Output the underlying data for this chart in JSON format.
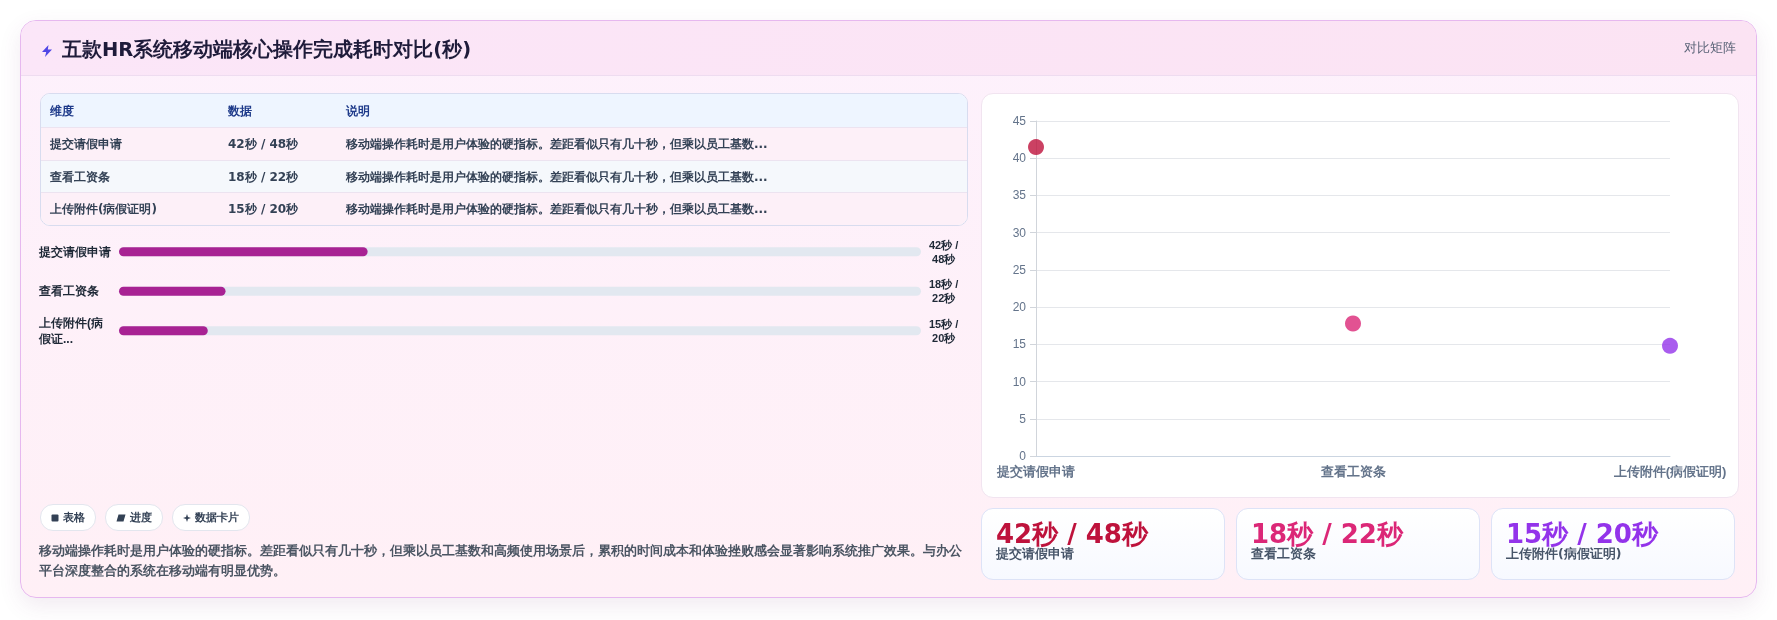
{
  "chart_data": [
    {
      "type": "other",
      "title": "五款HR系统移动端核心操作完成耗时对比(秒)",
      "annotations": [
        "对比矩阵",
        "维度",
        "数据",
        "说明",
        "移动端操作耗时是用户体验的硬指标。差距看似只有几十秒，但乘以员工基数...",
        "移动端操作耗时是用户体验的硬指标。差距看似只有几十秒，但乘以员工基数...",
        "移动端操作耗时是用户体验的硬指标。差距看似只有几十秒，但乘以员工基数..."
      ],
      "categories": [
        "提交请假申请",
        "查看工资条",
        "上传附件(病假证明)"
      ],
      "value_labels": [
        "42秒 / 48秒",
        "18秒 / 22秒",
        "15秒 / 20秒"
      ]
    },
    {
      "type": "bar",
      "orientation": "horizontal",
      "categories": [
        "提交请假申请",
        "查看工资条",
        "上传附件(病假证..."
      ],
      "values": [
        42,
        18,
        15
      ],
      "color": "#a82293",
      "value_labels": [
        "42秒 / 48秒",
        "18秒 / 22秒",
        "15秒 / 20秒"
      ],
      "tick_labels": "y"
    },
    {
      "type": "other",
      "annotations": [
        "表格",
        "进度",
        "数据卡片",
        "移动端操作耗时是用户体验的硬指标。差距看似只有几十秒，但乘以员工基数和高频使用场景后，累积的时间成本和体验挫败感会显著影响系统推广效果。与办公平台深度整合的系统在移动端有明显优势。"
      ]
    },
    {
      "type": "scatter",
      "categories": [
        "提交请假申请",
        "查看工资条",
        "上传附件(病假证明)"
      ],
      "values": [
        41.5,
        17.8,
        14.8
      ],
      "colors": [
        "#be123c",
        "#db2777",
        "#9333ea"
      ],
      "ylim": [
        0,
        45
      ],
      "yticks": [
        0,
        5,
        10,
        15,
        20,
        25,
        30,
        35,
        40,
        45
      ],
      "grid": "y",
      "marker": "circle"
    },
    {
      "type": "other",
      "categories": [
        "提交请假申请",
        "查看工资条",
        "上传附件(病假证明)"
      ],
      "value_labels": [
        "42秒 / 48秒",
        "18秒 / 22秒",
        "15秒 / 20秒"
      ]
    }
  ]
}
